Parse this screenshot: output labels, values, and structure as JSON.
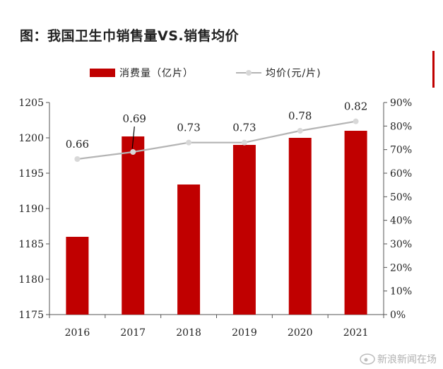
{
  "chart_data": {
    "type": "bar+line",
    "title": "图：我国卫生巾销售量VS.销售均价",
    "categories": [
      "2016",
      "2017",
      "2018",
      "2019",
      "2020",
      "2021"
    ],
    "series": [
      {
        "name": "消费量（亿片）",
        "type": "bar",
        "axis": "left",
        "values": [
          1186,
          1200.2,
          1193.4,
          1199,
          1200,
          1201
        ],
        "color": "#c00000"
      },
      {
        "name": "均价(元/片)",
        "type": "line",
        "axis": "right",
        "values": [
          0.66,
          0.69,
          0.73,
          0.73,
          0.78,
          0.82
        ],
        "labels": [
          "0.66",
          "0.69",
          "0.73",
          "0.73",
          "0.78",
          "0.82"
        ],
        "color": "#b4b4b4",
        "marker_color": "#d8d8d8"
      }
    ],
    "y_left": {
      "ylim": [
        1175,
        1205
      ],
      "ticks": [
        "1175",
        "1180",
        "1185",
        "1190",
        "1195",
        "1200",
        "1205"
      ]
    },
    "y_right": {
      "ylim": [
        0,
        0.9
      ],
      "ticks": [
        "0%",
        "10%",
        "20%",
        "30%",
        "40%",
        "50%",
        "60%",
        "70%",
        "80%",
        "90%"
      ]
    },
    "legend": {
      "position": "top",
      "items": [
        "消费量（亿片）",
        "均价(元/片)"
      ]
    },
    "grid": false
  },
  "watermark": "新浪新闻在场"
}
